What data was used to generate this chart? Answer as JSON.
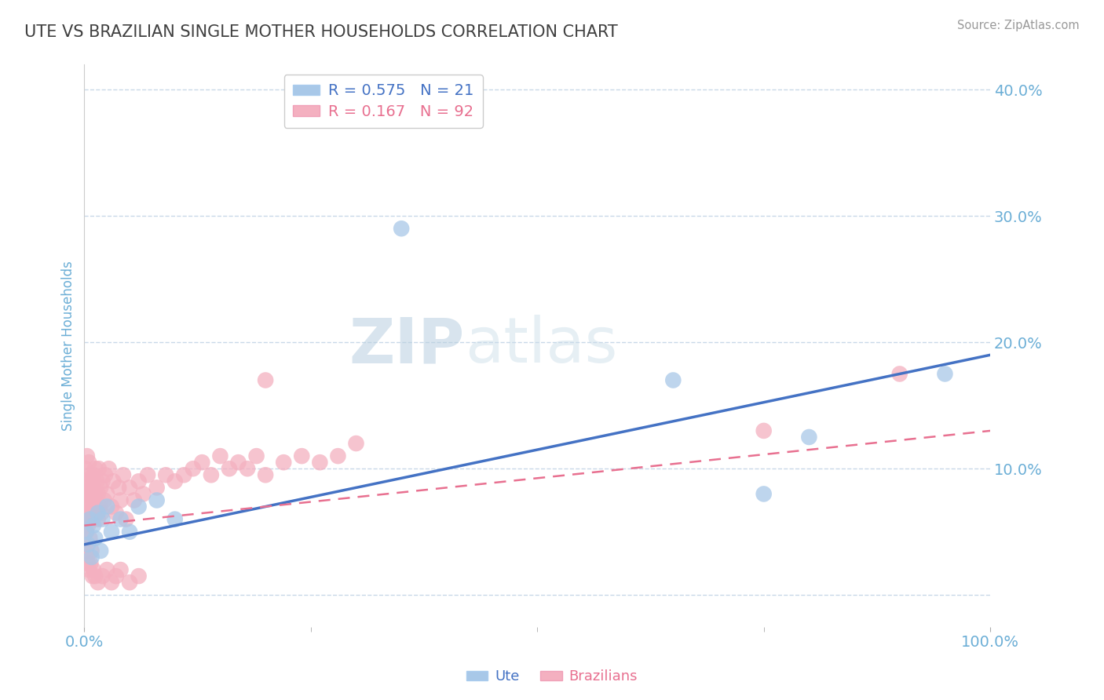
{
  "title": "UTE VS BRAZILIAN SINGLE MOTHER HOUSEHOLDS CORRELATION CHART",
  "source": "Source: ZipAtlas.com",
  "ylabel": "Single Mother Households",
  "watermark_zip": "ZIP",
  "watermark_atlas": "atlas",
  "R_ute": 0.575,
  "N_ute": 21,
  "R_braz": 0.167,
  "N_braz": 92,
  "xlim": [
    0.0,
    1.0
  ],
  "ylim": [
    -0.025,
    0.42
  ],
  "yticks": [
    0.0,
    0.1,
    0.2,
    0.3,
    0.4
  ],
  "ytick_labels": [
    "",
    "10.0%",
    "20.0%",
    "30.0%",
    "40.0%"
  ],
  "xtick_labels": [
    "0.0%",
    "100.0%"
  ],
  "color_ute_scatter": "#a8c8e8",
  "color_braz_scatter": "#f4b0c0",
  "color_line_ute": "#4472c4",
  "color_line_braz": "#e87090",
  "title_color": "#404040",
  "axis_color": "#6baed6",
  "grid_color": "#c8d8e8",
  "background_color": "#ffffff",
  "ute_x": [
    0.002,
    0.004,
    0.006,
    0.008,
    0.01,
    0.012,
    0.015,
    0.018,
    0.02,
    0.025,
    0.03,
    0.04,
    0.05,
    0.06,
    0.08,
    0.1,
    0.35,
    0.65,
    0.75,
    0.8,
    0.95
  ],
  "ute_y": [
    0.05,
    0.04,
    0.06,
    0.03,
    0.055,
    0.045,
    0.065,
    0.035,
    0.06,
    0.07,
    0.05,
    0.06,
    0.05,
    0.07,
    0.075,
    0.06,
    0.29,
    0.17,
    0.08,
    0.125,
    0.175
  ],
  "braz_x": [
    0.001,
    0.001,
    0.001,
    0.002,
    0.002,
    0.002,
    0.003,
    0.003,
    0.003,
    0.004,
    0.004,
    0.005,
    0.005,
    0.005,
    0.006,
    0.006,
    0.007,
    0.007,
    0.008,
    0.008,
    0.009,
    0.009,
    0.01,
    0.01,
    0.011,
    0.012,
    0.012,
    0.013,
    0.014,
    0.015,
    0.015,
    0.016,
    0.017,
    0.018,
    0.019,
    0.02,
    0.022,
    0.023,
    0.025,
    0.027,
    0.03,
    0.032,
    0.035,
    0.038,
    0.04,
    0.043,
    0.046,
    0.05,
    0.055,
    0.06,
    0.065,
    0.07,
    0.08,
    0.09,
    0.1,
    0.11,
    0.12,
    0.13,
    0.14,
    0.15,
    0.16,
    0.17,
    0.18,
    0.19,
    0.2,
    0.22,
    0.24,
    0.26,
    0.28,
    0.3,
    0.001,
    0.002,
    0.003,
    0.004,
    0.005,
    0.006,
    0.007,
    0.008,
    0.009,
    0.01,
    0.012,
    0.015,
    0.02,
    0.025,
    0.03,
    0.035,
    0.04,
    0.05,
    0.06,
    0.2,
    0.75,
    0.9
  ],
  "braz_y": [
    0.06,
    0.08,
    0.1,
    0.05,
    0.07,
    0.09,
    0.06,
    0.08,
    0.11,
    0.055,
    0.075,
    0.065,
    0.085,
    0.105,
    0.06,
    0.08,
    0.07,
    0.095,
    0.065,
    0.09,
    0.06,
    0.085,
    0.075,
    0.095,
    0.065,
    0.08,
    0.1,
    0.07,
    0.09,
    0.06,
    0.08,
    0.1,
    0.07,
    0.085,
    0.065,
    0.09,
    0.075,
    0.095,
    0.08,
    0.1,
    0.07,
    0.09,
    0.065,
    0.085,
    0.075,
    0.095,
    0.06,
    0.085,
    0.075,
    0.09,
    0.08,
    0.095,
    0.085,
    0.095,
    0.09,
    0.095,
    0.1,
    0.105,
    0.095,
    0.11,
    0.1,
    0.105,
    0.1,
    0.11,
    0.095,
    0.105,
    0.11,
    0.105,
    0.11,
    0.12,
    0.04,
    0.035,
    0.03,
    0.025,
    0.02,
    0.045,
    0.025,
    0.035,
    0.015,
    0.02,
    0.015,
    0.01,
    0.015,
    0.02,
    0.01,
    0.015,
    0.02,
    0.01,
    0.015,
    0.17,
    0.13,
    0.175
  ],
  "ute_line_x0": 0.0,
  "ute_line_y0": 0.04,
  "ute_line_x1": 1.0,
  "ute_line_y1": 0.19,
  "braz_line_x0": 0.0,
  "braz_line_y0": 0.055,
  "braz_line_x1": 1.0,
  "braz_line_y1": 0.13
}
